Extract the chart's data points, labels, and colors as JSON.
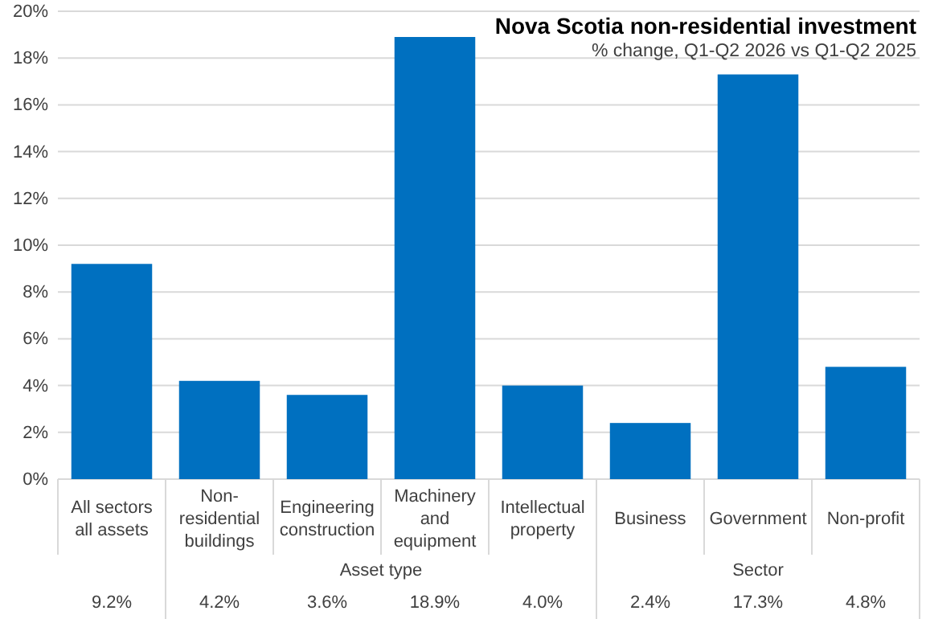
{
  "chart_data": {
    "type": "bar",
    "title": "Nova Scotia non-residential  investment",
    "subtitle": "% change, Q1-Q2 2026 vs Q1-Q2 2025",
    "categories": [
      "All sectors all assets",
      "Non-residential buildings",
      "Engineering construction",
      "Machinery and equipment",
      "Intellectual property",
      "Business",
      "Government",
      "Non-profit"
    ],
    "values": [
      9.2,
      4.2,
      3.6,
      18.9,
      4.0,
      2.4,
      17.3,
      4.8
    ],
    "color": "#0070c0",
    "ylim": [
      0,
      20
    ],
    "yticks": [
      {
        "value": 0,
        "label": "0%"
      },
      {
        "value": 2,
        "label": "2%"
      },
      {
        "value": 4,
        "label": "4%"
      },
      {
        "value": 6,
        "label": "6%"
      },
      {
        "value": 8,
        "label": "8%"
      },
      {
        "value": 10,
        "label": "10%"
      },
      {
        "value": 12,
        "label": "12%"
      },
      {
        "value": 14,
        "label": "14%"
      },
      {
        "value": 16,
        "label": "16%"
      },
      {
        "value": 18,
        "label": "18%"
      },
      {
        "value": 20,
        "label": "20%"
      }
    ],
    "grid": "y",
    "data_labels": true,
    "value_labels": [
      "9.2%",
      "4.2%",
      "3.6%",
      "18.9%",
      "4.0%",
      "2.4%",
      "17.3%",
      "4.8%"
    ],
    "annotations": [
      "Asset type",
      "Sector"
    ]
  }
}
